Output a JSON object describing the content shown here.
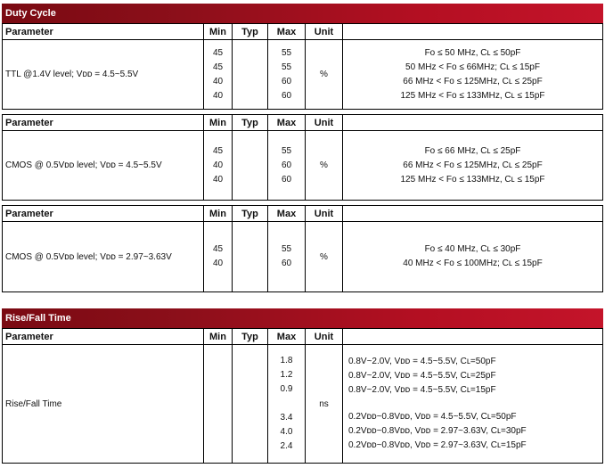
{
  "headers": {
    "parameter": "Parameter",
    "min": "Min",
    "typ": "Typ",
    "max": "Max",
    "unit": "Unit"
  },
  "duty_cycle": {
    "title": "Duty Cycle",
    "rows": [
      {
        "parameter": "TTL @1.4V level; Vᴅᴅ = 4.5~5.5V",
        "min": [
          "45",
          "45",
          "40",
          "40"
        ],
        "max": [
          "55",
          "55",
          "60",
          "60"
        ],
        "unit": "%",
        "conditions": [
          "Fo ≤ 50 MHz, Cʟ ≤ 50pF",
          "50 MHz < Fo ≤ 66MHz; Cʟ ≤ 15pF",
          "66 MHz < Fo ≤ 125MHz, Cʟ ≤ 25pF",
          "125 MHz < Fo ≤ 133MHz, Cʟ ≤ 15pF"
        ]
      },
      {
        "parameter": "CMOS @ 0.5Vᴅᴅ level; Vᴅᴅ = 4.5~5.5V",
        "min": [
          "45",
          "40",
          "40"
        ],
        "max": [
          "55",
          "60",
          "60"
        ],
        "unit": "%",
        "conditions": [
          "Fo ≤ 66 MHz, Cʟ ≤ 25pF",
          "66 MHz < Fo ≤ 125MHz, Cʟ ≤ 25pF",
          "125 MHz < Fo ≤ 133MHz, Cʟ ≤ 15pF"
        ]
      },
      {
        "parameter": "CMOS @ 0.5Vᴅᴅ level; Vᴅᴅ = 2.97~3.63V",
        "min": [
          "45",
          "40"
        ],
        "max": [
          "55",
          "60"
        ],
        "unit": "%",
        "conditions": [
          "Fo ≤ 40 MHz, Cʟ ≤ 30pF",
          "40 MHz < Fo ≤ 100MHz; Cʟ ≤ 15pF"
        ]
      }
    ]
  },
  "rise_fall": {
    "title": "Rise/Fall Time",
    "parameter": "Rise/Fall Time",
    "max": [
      "1.8",
      "1.2",
      "0.9",
      "3.4",
      "4.0",
      "2.4"
    ],
    "unit": "ns",
    "conditions": [
      "0.8V~2.0V, Vᴅᴅ = 4.5~5.5V, Cʟ=50pF",
      "0.8V~2.0V, Vᴅᴅ = 4.5~5.5V, Cʟ=25pF",
      "0.8V~2.0V, Vᴅᴅ = 4.5~5.5V, Cʟ=15pF",
      "0.2Vᴅᴅ~0.8Vᴅᴅ, Vᴅᴅ = 4.5~5.5V, Cʟ=50pF",
      "0.2Vᴅᴅ~0.8Vᴅᴅ, Vᴅᴅ = 2.97~3.63V, Cʟ=30pF",
      "0.2Vᴅᴅ~0.8Vᴅᴅ, Vᴅᴅ = 2.97~3.63V, Cʟ=15pF"
    ]
  }
}
